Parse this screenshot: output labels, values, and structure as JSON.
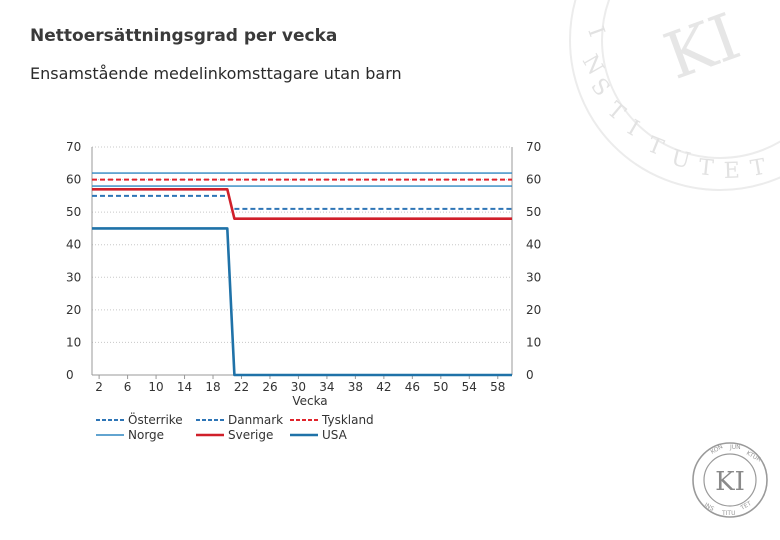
{
  "header": {
    "title": "Nettoersättningsgrad per vecka",
    "subtitle": "Ensamstående medelinkomsttagare utan barn"
  },
  "watermark": {
    "letters": "INSTITUTET KI",
    "logo_letters": "KONJUNKTURINSTITUTET KI"
  },
  "colors": {
    "osterrike": "#2e75b6",
    "danmark": "#2e75b6",
    "tyskland": "#e0242c",
    "norge": "#2e86c1",
    "sverige": "#d0202a",
    "usa": "#1f72a8",
    "grid": "#c8c8c8",
    "watermark": "#e6e6e6"
  },
  "chart_data": {
    "type": "line",
    "title": "",
    "xlabel": "Vecka",
    "ylabel": "",
    "xlim": [
      1,
      60
    ],
    "ylim": [
      0,
      70
    ],
    "yticks": [
      0,
      10,
      20,
      30,
      40,
      50,
      60,
      70
    ],
    "xticks": [
      2,
      6,
      10,
      14,
      18,
      22,
      26,
      30,
      34,
      38,
      42,
      46,
      50,
      54,
      58
    ],
    "grid": true,
    "legend_position": "bottom",
    "series": [
      {
        "name": "Österrike",
        "style": "dashed",
        "color_key": "osterrike",
        "points": [
          [
            1,
            55
          ],
          [
            20,
            55
          ]
        ]
      },
      {
        "name": "Danmark",
        "style": "dashed",
        "color_key": "danmark",
        "points": [
          [
            21,
            51
          ],
          [
            60,
            51
          ]
        ]
      },
      {
        "name": "Tyskland",
        "style": "dashed",
        "color_key": "tyskland",
        "points": [
          [
            1,
            60
          ],
          [
            60,
            60
          ]
        ]
      },
      {
        "name": "Norge",
        "style": "solid-thin",
        "color_key": "norge",
        "points": [
          [
            1,
            62
          ],
          [
            60,
            62
          ],
          [
            1,
            58
          ],
          [
            60,
            58
          ]
        ]
      },
      {
        "name": "Sverige",
        "style": "solid-thick",
        "color_key": "sverige",
        "points": [
          [
            1,
            57
          ],
          [
            20,
            57
          ],
          [
            21,
            48
          ],
          [
            60,
            48
          ]
        ]
      },
      {
        "name": "USA",
        "style": "solid-thick",
        "color_key": "usa",
        "points": [
          [
            1,
            45
          ],
          [
            20,
            45
          ],
          [
            21,
            0
          ],
          [
            60,
            0
          ]
        ]
      }
    ]
  }
}
